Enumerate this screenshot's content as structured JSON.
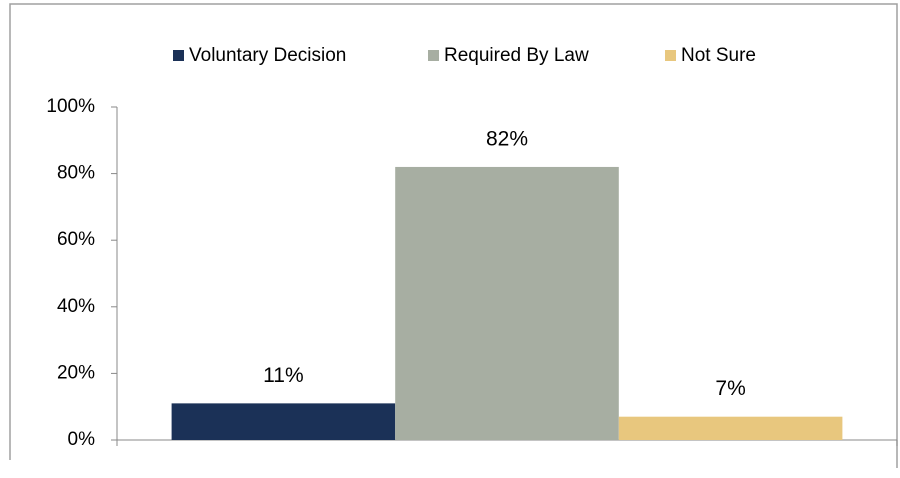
{
  "chart_data": {
    "type": "bar",
    "categories": [
      null
    ],
    "series": [
      {
        "name": "Voluntary Decision",
        "color": "#1b3157",
        "values": [
          11
        ],
        "value_labels": [
          "11%"
        ]
      },
      {
        "name": "Required By Law",
        "color": "#a7aea2",
        "values": [
          82
        ],
        "value_labels": [
          "82%"
        ]
      },
      {
        "name": "Not Sure",
        "color": "#e8c77e",
        "values": [
          7
        ],
        "value_labels": [
          "7%"
        ]
      }
    ],
    "ylim": [
      0,
      100
    ],
    "yticks": [
      {
        "value": 0,
        "label": "0%"
      },
      {
        "value": 20,
        "label": "20%"
      },
      {
        "value": 40,
        "label": "40%"
      },
      {
        "value": 60,
        "label": "60%"
      },
      {
        "value": 80,
        "label": "80%"
      },
      {
        "value": 100,
        "label": "100%"
      }
    ],
    "grid": false,
    "legend": "top"
  }
}
